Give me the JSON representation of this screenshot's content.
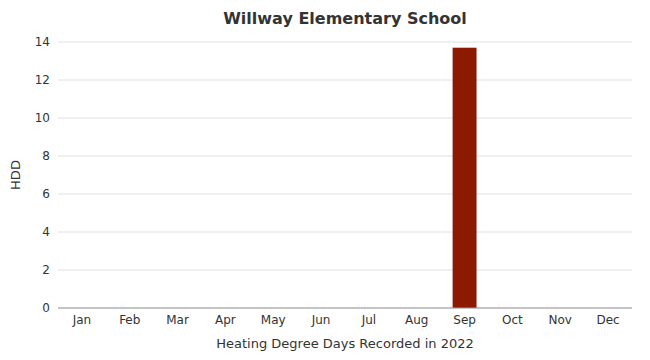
{
  "chart_data": {
    "type": "bar",
    "title": "Willway Elementary School",
    "xlabel": "Heating Degree Days Recorded in 2022",
    "ylabel": "HDD",
    "categories": [
      "Jan",
      "Feb",
      "Mar",
      "Apr",
      "May",
      "Jun",
      "Jul",
      "Aug",
      "Sep",
      "Oct",
      "Nov",
      "Dec"
    ],
    "values": [
      0,
      0,
      0,
      0,
      0,
      0,
      0,
      0,
      13.7,
      0,
      0,
      0
    ],
    "color": "#8B1A00",
    "ylim": [
      0,
      14
    ],
    "yticks": [
      0,
      2,
      4,
      6,
      8,
      10,
      12,
      14
    ],
    "grid": true
  }
}
